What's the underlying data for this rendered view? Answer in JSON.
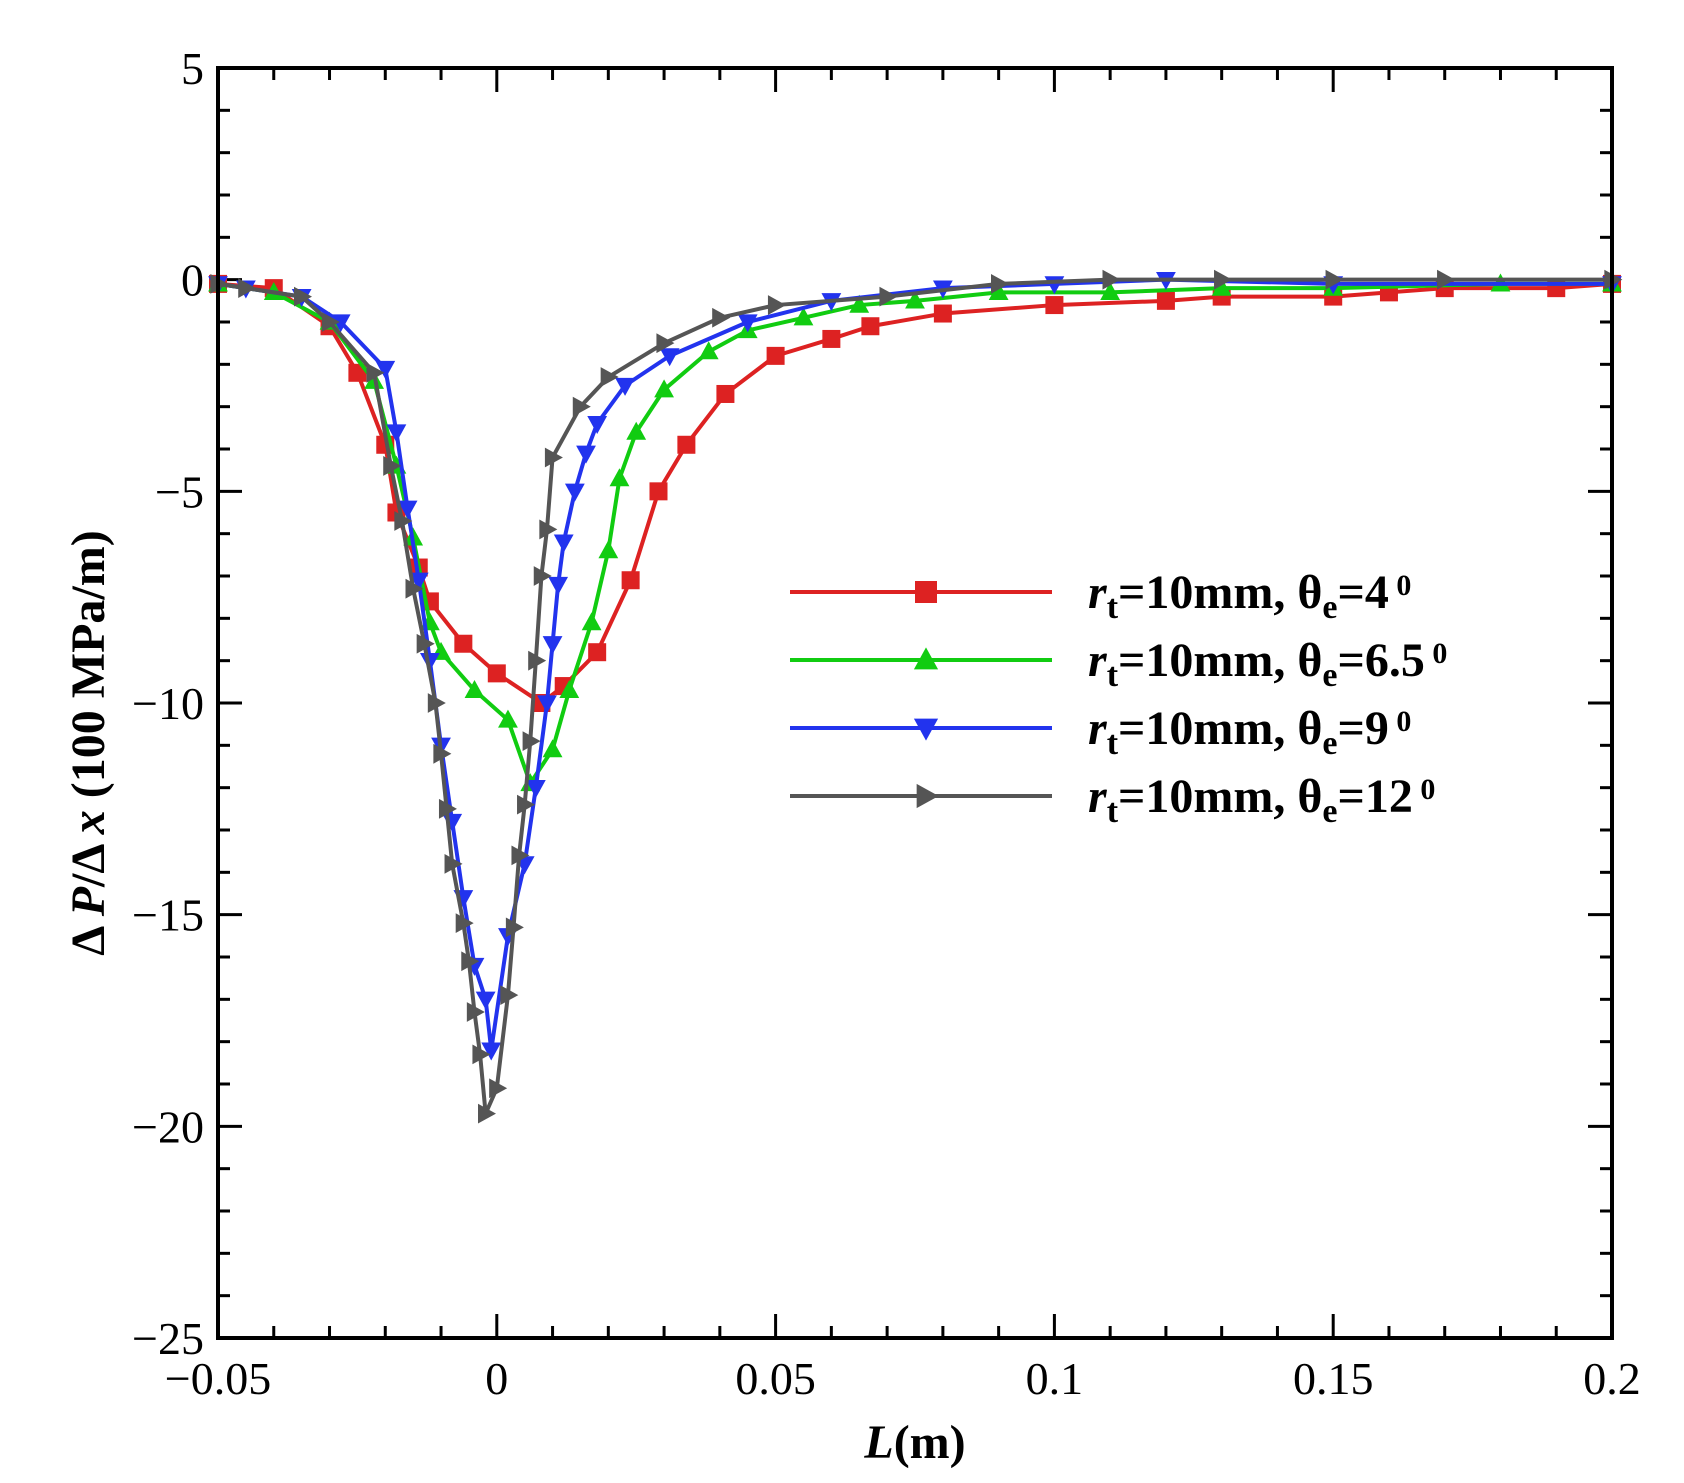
{
  "chart_data": {
    "type": "line",
    "title": "",
    "xlabel": {
      "italic": "L",
      "rest": "(m)"
    },
    "ylabel": {
      "prefix": "Δ ",
      "p": "P",
      "mid": "/Δ ",
      "x": "x",
      "rest": " (100 MPa/m)"
    },
    "xlim": [
      -0.05,
      0.2
    ],
    "ylim": [
      -25,
      5
    ],
    "grid": false,
    "legend_position": "center-right",
    "x_ticks": [
      {
        "value": -0.05,
        "label": "-0.05"
      },
      {
        "value": 0,
        "label": "0"
      },
      {
        "value": 0.05,
        "label": "0.05"
      },
      {
        "value": 0.1,
        "label": "0.1"
      },
      {
        "value": 0.15,
        "label": "0.15"
      },
      {
        "value": 0.2,
        "label": "0.2"
      }
    ],
    "y_ticks": [
      {
        "value": 5,
        "label": "5"
      },
      {
        "value": 0,
        "label": "0"
      },
      {
        "value": -5,
        "label": "-5"
      },
      {
        "value": -10,
        "label": "-10"
      },
      {
        "value": -15,
        "label": "-15"
      },
      {
        "value": -20,
        "label": "-20"
      },
      {
        "value": -25,
        "label": "-25"
      }
    ],
    "series": [
      {
        "name": "r_t=10mm, θ_e=4 °",
        "legend": {
          "r": "r",
          "sub_t": "t",
          "mid": "=10mm,  θ",
          "sub_e": "e",
          "val": "=4",
          "sup": "0"
        },
        "color": "#dd2222",
        "marker": "square",
        "points": [
          [
            -0.05,
            -0.1
          ],
          [
            -0.04,
            -0.2
          ],
          [
            -0.03,
            -1.1
          ],
          [
            -0.025,
            -2.2
          ],
          [
            -0.02,
            -3.9
          ],
          [
            -0.018,
            -5.5
          ],
          [
            -0.014,
            -6.8
          ],
          [
            -0.012,
            -7.6
          ],
          [
            -0.006,
            -8.6
          ],
          [
            0.0,
            -9.3
          ],
          [
            0.008,
            -10.0
          ],
          [
            0.012,
            -9.6
          ],
          [
            0.018,
            -8.8
          ],
          [
            0.024,
            -7.1
          ],
          [
            0.029,
            -5.0
          ],
          [
            0.034,
            -3.9
          ],
          [
            0.041,
            -2.7
          ],
          [
            0.05,
            -1.8
          ],
          [
            0.06,
            -1.4
          ],
          [
            0.067,
            -1.1
          ],
          [
            0.08,
            -0.8
          ],
          [
            0.1,
            -0.6
          ],
          [
            0.12,
            -0.5
          ],
          [
            0.13,
            -0.4
          ],
          [
            0.15,
            -0.4
          ],
          [
            0.16,
            -0.3
          ],
          [
            0.17,
            -0.2
          ],
          [
            0.19,
            -0.2
          ],
          [
            0.2,
            -0.1
          ]
        ]
      },
      {
        "name": "r_t=10mm, θ_e=6.5 °",
        "legend": {
          "r": "r",
          "sub_t": "t",
          "mid": "=10mm,  θ",
          "sub_e": "e",
          "val": "=6.5",
          "sup": "0"
        },
        "color": "#11cc11",
        "marker": "triangle-up",
        "points": [
          [
            -0.05,
            -0.1
          ],
          [
            -0.04,
            -0.3
          ],
          [
            -0.03,
            -1.0
          ],
          [
            -0.022,
            -2.4
          ],
          [
            -0.018,
            -4.4
          ],
          [
            -0.015,
            -6.1
          ],
          [
            -0.012,
            -8.1
          ],
          [
            -0.01,
            -8.8
          ],
          [
            -0.004,
            -9.7
          ],
          [
            0.002,
            -10.4
          ],
          [
            0.006,
            -11.9
          ],
          [
            0.01,
            -11.1
          ],
          [
            0.013,
            -9.7
          ],
          [
            0.017,
            -8.1
          ],
          [
            0.02,
            -6.4
          ],
          [
            0.022,
            -4.7
          ],
          [
            0.025,
            -3.6
          ],
          [
            0.03,
            -2.6
          ],
          [
            0.038,
            -1.7
          ],
          [
            0.045,
            -1.2
          ],
          [
            0.055,
            -0.9
          ],
          [
            0.065,
            -0.6
          ],
          [
            0.075,
            -0.5
          ],
          [
            0.09,
            -0.3
          ],
          [
            0.11,
            -0.3
          ],
          [
            0.13,
            -0.2
          ],
          [
            0.15,
            -0.2
          ],
          [
            0.18,
            -0.1
          ],
          [
            0.2,
            -0.1
          ]
        ]
      },
      {
        "name": "r_t=10mm, θ_e=9 °",
        "legend": {
          "r": "r",
          "sub_t": "t",
          "mid": "=10mm,  θ",
          "sub_e": "e",
          "val": "=9",
          "sup": "0"
        },
        "color": "#2233ee",
        "marker": "triangle-down",
        "points": [
          [
            -0.05,
            -0.1
          ],
          [
            -0.045,
            -0.2
          ],
          [
            -0.035,
            -0.4
          ],
          [
            -0.028,
            -1.0
          ],
          [
            -0.02,
            -2.1
          ],
          [
            -0.018,
            -3.6
          ],
          [
            -0.016,
            -5.4
          ],
          [
            -0.014,
            -7.1
          ],
          [
            -0.012,
            -9.0
          ],
          [
            -0.01,
            -11.0
          ],
          [
            -0.008,
            -12.8
          ],
          [
            -0.006,
            -14.6
          ],
          [
            -0.004,
            -16.2
          ],
          [
            -0.002,
            -17.0
          ],
          [
            -0.001,
            -18.2
          ],
          [
            0.002,
            -15.5
          ],
          [
            0.005,
            -13.8
          ],
          [
            0.007,
            -12.0
          ],
          [
            0.009,
            -10.0
          ],
          [
            0.01,
            -8.6
          ],
          [
            0.011,
            -7.2
          ],
          [
            0.012,
            -6.2
          ],
          [
            0.014,
            -5.0
          ],
          [
            0.016,
            -4.1
          ],
          [
            0.018,
            -3.4
          ],
          [
            0.023,
            -2.5
          ],
          [
            0.031,
            -1.8
          ],
          [
            0.045,
            -1.0
          ],
          [
            0.06,
            -0.5
          ],
          [
            0.08,
            -0.2
          ],
          [
            0.1,
            -0.1
          ],
          [
            0.12,
            0.0
          ],
          [
            0.15,
            -0.1
          ],
          [
            0.2,
            -0.1
          ]
        ]
      },
      {
        "name": "r_t=10mm, θ_e=12 °",
        "legend": {
          "r": "r",
          "sub_t": "t",
          "mid": "=10mm,  θ",
          "sub_e": "e",
          "val": "=12",
          "sup": "0"
        },
        "color": "#555555",
        "marker": "triangle-right",
        "points": [
          [
            -0.05,
            -0.1
          ],
          [
            -0.045,
            -0.2
          ],
          [
            -0.035,
            -0.4
          ],
          [
            -0.03,
            -1.0
          ],
          [
            -0.022,
            -2.2
          ],
          [
            -0.019,
            -4.4
          ],
          [
            -0.017,
            -5.7
          ],
          [
            -0.015,
            -7.3
          ],
          [
            -0.013,
            -8.6
          ],
          [
            -0.011,
            -10.0
          ],
          [
            -0.01,
            -11.2
          ],
          [
            -0.009,
            -12.5
          ],
          [
            -0.008,
            -13.8
          ],
          [
            -0.006,
            -15.2
          ],
          [
            -0.005,
            -16.1
          ],
          [
            -0.004,
            -17.3
          ],
          [
            -0.003,
            -18.3
          ],
          [
            -0.002,
            -19.7
          ],
          [
            0.0,
            -19.1
          ],
          [
            0.002,
            -16.9
          ],
          [
            0.003,
            -15.3
          ],
          [
            0.004,
            -13.6
          ],
          [
            0.005,
            -12.4
          ],
          [
            0.006,
            -10.9
          ],
          [
            0.007,
            -9.0
          ],
          [
            0.008,
            -7.0
          ],
          [
            0.009,
            -5.9
          ],
          [
            0.01,
            -4.2
          ],
          [
            0.015,
            -3.0
          ],
          [
            0.02,
            -2.3
          ],
          [
            0.03,
            -1.5
          ],
          [
            0.04,
            -0.9
          ],
          [
            0.05,
            -0.6
          ],
          [
            0.07,
            -0.4
          ],
          [
            0.09,
            -0.1
          ],
          [
            0.11,
            0.0
          ],
          [
            0.13,
            0.0
          ],
          [
            0.15,
            0.0
          ],
          [
            0.17,
            0.0
          ],
          [
            0.2,
            0.0
          ]
        ]
      }
    ]
  }
}
